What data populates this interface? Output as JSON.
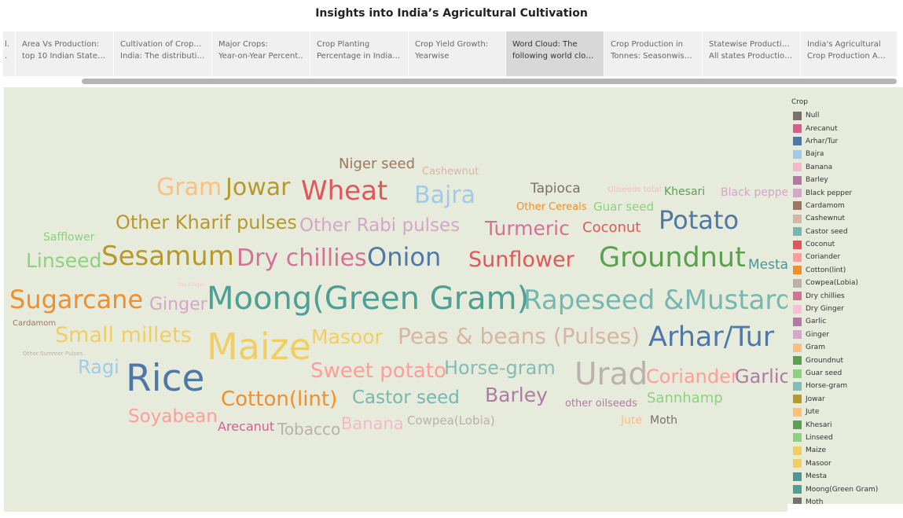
{
  "title": "Insights into India’s Agricultural Cultivation",
  "tabs": [
    {
      "line1": "l.",
      "line2": "."
    },
    {
      "line1": "Area Vs Production:",
      "line2": "top 10 Indian States a.."
    },
    {
      "line1": "Cultivation of Crops in",
      "line2": "India: The distributio.."
    },
    {
      "line1": "Major Crops:",
      "line2": "Year-on-Year Percent.."
    },
    {
      "line1": "Crop Planting",
      "line2": "Percentage in India b.."
    },
    {
      "line1": "Crop Yield Growth:",
      "line2": "Yearwise"
    },
    {
      "line1": "Word Cloud: The",
      "line2": "following world cloud.."
    },
    {
      "line1": "Crop Production in",
      "line2": "Tonnes: Seasonwise .."
    },
    {
      "line1": "Statewise Production:",
      "line2": "All states Production .."
    },
    {
      "line1": "India's Agricultural",
      "line2": "Crop Production  Anal.."
    }
  ],
  "active_tab": 6,
  "legend": {
    "title": "Crop",
    "items": [
      {
        "label": "Null",
        "color": "#7a706b"
      },
      {
        "label": "Arecanut",
        "color": "#d6608a"
      },
      {
        "label": "Arhar/Tur",
        "color": "#4e79a7"
      },
      {
        "label": "Bajra",
        "color": "#a0cbe8"
      },
      {
        "label": "Banana",
        "color": "#f5b8c6"
      },
      {
        "label": "Barley",
        "color": "#b07aa1"
      },
      {
        "label": "Black pepper",
        "color": "#d4a6c8"
      },
      {
        "label": "Cardamom",
        "color": "#9d7660"
      },
      {
        "label": "Cashewnut",
        "color": "#d7b5a6"
      },
      {
        "label": "Castor seed",
        "color": "#76b7b2"
      },
      {
        "label": "Coconut",
        "color": "#e15759"
      },
      {
        "label": "Coriander",
        "color": "#ff9d9a"
      },
      {
        "label": "Cotton(lint)",
        "color": "#f28e2b"
      },
      {
        "label": "Cowpea(Lobia)",
        "color": "#bab0ac"
      },
      {
        "label": "Dry chillies",
        "color": "#d37295"
      },
      {
        "label": "Dry Ginger",
        "color": "#fabfd2"
      },
      {
        "label": "Garlic",
        "color": "#b07aa1"
      },
      {
        "label": "Ginger",
        "color": "#d4a6c8"
      },
      {
        "label": "Gram",
        "color": "#ffbe7d"
      },
      {
        "label": "Groundnut",
        "color": "#59a14f"
      },
      {
        "label": "Guar seed",
        "color": "#8cd17d"
      },
      {
        "label": "Horse-gram",
        "color": "#86bcb6"
      },
      {
        "label": "Jowar",
        "color": "#b6992d"
      },
      {
        "label": "Jute",
        "color": "#ffbe7d"
      },
      {
        "label": "Khesari",
        "color": "#59a14f"
      },
      {
        "label": "Linseed",
        "color": "#8cd17d"
      },
      {
        "label": "Maize",
        "color": "#f1ce63"
      },
      {
        "label": "Masoor",
        "color": "#f1ce63"
      },
      {
        "label": "Mesta",
        "color": "#499894"
      },
      {
        "label": "Moong(Green Gram)",
        "color": "#4e9f94"
      },
      {
        "label": "Moth",
        "color": "#79706e"
      }
    ]
  },
  "words": [
    {
      "text": "Niger seed",
      "size": 18,
      "color": "#9d7660"
    },
    {
      "text": "Cashewnut",
      "size": 13,
      "color": "#d7b5a6"
    },
    {
      "text": "Gram",
      "size": 30,
      "color": "#ffbe7d"
    },
    {
      "text": "Jowar",
      "size": 30,
      "color": "#b6992d"
    },
    {
      "text": "Wheat",
      "size": 34,
      "color": "#e15759"
    },
    {
      "text": "Bajra",
      "size": 30,
      "color": "#a0cbe8"
    },
    {
      "text": "Tapioca",
      "size": 17,
      "color": "#7a706b"
    },
    {
      "text": "Oilseeds total",
      "size": 10,
      "color": "#f5b8c6"
    },
    {
      "text": "Khesari",
      "size": 14,
      "color": "#59a14f"
    },
    {
      "text": "Black pepper",
      "size": 14,
      "color": "#d4a6c8"
    },
    {
      "text": "Other Cereals",
      "size": 13,
      "color": "#f28e2b"
    },
    {
      "text": "Guar seed",
      "size": 15,
      "color": "#8cd17d"
    },
    {
      "text": "Other Kharif pulses",
      "size": 24,
      "color": "#b6992d"
    },
    {
      "text": "Other Rabi pulses",
      "size": 23,
      "color": "#d4a6c8"
    },
    {
      "text": "Turmeric",
      "size": 25,
      "color": "#d37295"
    },
    {
      "text": "Coconut",
      "size": 18,
      "color": "#e15759"
    },
    {
      "text": "Potato",
      "size": 32,
      "color": "#4e79a7"
    },
    {
      "text": "Safflower",
      "size": 14,
      "color": "#8cd17d"
    },
    {
      "text": "Linseed",
      "size": 25,
      "color": "#8cd17d"
    },
    {
      "text": "Sesamum",
      "size": 34,
      "color": "#b6992d"
    },
    {
      "text": "Dry chillies",
      "size": 30,
      "color": "#d37295"
    },
    {
      "text": "Onion",
      "size": 32,
      "color": "#4e79a7"
    },
    {
      "text": "Sunflower",
      "size": 27,
      "color": "#e15759"
    },
    {
      "text": "Groundnut",
      "size": 35,
      "color": "#59a14f"
    },
    {
      "text": "Mesta",
      "size": 17,
      "color": "#499894"
    },
    {
      "text": "Dry Ginger",
      "size": 6,
      "color": "#fabfd2"
    },
    {
      "text": "Sugarcane",
      "size": 32,
      "color": "#f28e2b"
    },
    {
      "text": "Ginger",
      "size": 22,
      "color": "#d4a6c8"
    },
    {
      "text": "Moong(Green Gram)",
      "size": 40,
      "color": "#4e9f94"
    },
    {
      "text": "Rapeseed &Mustard",
      "size": 34,
      "color": "#76b7b2"
    },
    {
      "text": "Cardamom",
      "size": 10,
      "color": "#9d7660"
    },
    {
      "text": "Small millets",
      "size": 27,
      "color": "#f1ce63"
    },
    {
      "text": "Maize",
      "size": 46,
      "color": "#f1ce63"
    },
    {
      "text": "Masoor",
      "size": 25,
      "color": "#f1ce63"
    },
    {
      "text": "Peas & beans (Pulses)",
      "size": 28,
      "color": "#d7b5a6"
    },
    {
      "text": "Arhar/Tur",
      "size": 35,
      "color": "#4e79a7"
    },
    {
      "text": "Other Summer Pulses",
      "size": 7,
      "color": "#bab0ac"
    },
    {
      "text": "Ragi",
      "size": 24,
      "color": "#a0cbe8"
    },
    {
      "text": "Rice",
      "size": 47,
      "color": "#4e79a7"
    },
    {
      "text": "Sweet potato",
      "size": 26,
      "color": "#ff9d9a"
    },
    {
      "text": "Horse-gram",
      "size": 24,
      "color": "#86bcb6"
    },
    {
      "text": "Urad",
      "size": 39,
      "color": "#bab0ac"
    },
    {
      "text": "Coriander",
      "size": 24,
      "color": "#ff9d9a"
    },
    {
      "text": "Garlic",
      "size": 24,
      "color": "#b07aa1"
    },
    {
      "text": "Cotton(lint)",
      "size": 26,
      "color": "#f28e2b"
    },
    {
      "text": "Castor seed",
      "size": 23,
      "color": "#76b7b2"
    },
    {
      "text": "Barley",
      "size": 25,
      "color": "#b07aa1"
    },
    {
      "text": "other oilseeds",
      "size": 13,
      "color": "#b07aa1"
    },
    {
      "text": "Sannhamp",
      "size": 18,
      "color": "#8cd17d"
    },
    {
      "text": "Soyabean",
      "size": 23,
      "color": "#ff9d9a"
    },
    {
      "text": "Arecanut",
      "size": 16,
      "color": "#d6608a"
    },
    {
      "text": "Tobacco",
      "size": 20,
      "color": "#bab0ac"
    },
    {
      "text": "Banana",
      "size": 21,
      "color": "#f5b8c6"
    },
    {
      "text": "Cowpea(Lobia)",
      "size": 15,
      "color": "#bab0ac"
    },
    {
      "text": "Jute",
      "size": 14,
      "color": "#ffbe7d"
    },
    {
      "text": "Moth",
      "size": 14,
      "color": "#79706e"
    }
  ]
}
